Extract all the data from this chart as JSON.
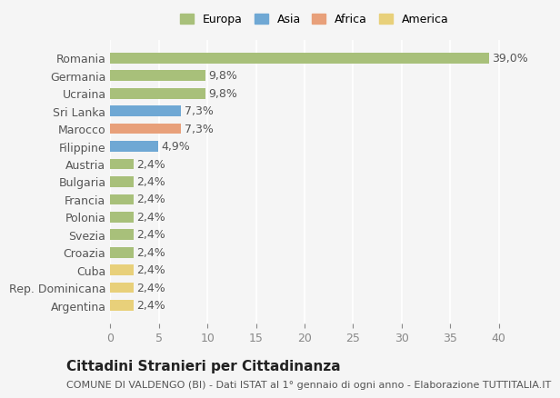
{
  "countries": [
    "Romania",
    "Germania",
    "Ucraina",
    "Sri Lanka",
    "Marocco",
    "Filippine",
    "Austria",
    "Bulgaria",
    "Francia",
    "Polonia",
    "Svezia",
    "Croazia",
    "Cuba",
    "Rep. Dominicana",
    "Argentina"
  ],
  "values": [
    39.0,
    9.8,
    9.8,
    7.3,
    7.3,
    4.9,
    2.4,
    2.4,
    2.4,
    2.4,
    2.4,
    2.4,
    2.4,
    2.4,
    2.4
  ],
  "continents": [
    "Europa",
    "Europa",
    "Europa",
    "Asia",
    "Africa",
    "Asia",
    "Europa",
    "Europa",
    "Europa",
    "Europa",
    "Europa",
    "Europa",
    "America",
    "America",
    "America"
  ],
  "continent_colors": {
    "Europa": "#a8c07a",
    "Asia": "#6fa8d4",
    "Africa": "#e8a07a",
    "America": "#e8d07a"
  },
  "legend_order": [
    "Europa",
    "Asia",
    "Africa",
    "America"
  ],
  "title": "Cittadini Stranieri per Cittadinanza",
  "subtitle": "COMUNE DI VALDENGO (BI) - Dati ISTAT al 1° gennaio di ogni anno - Elaborazione TUTTITALIA.IT",
  "xlabel": "",
  "xlim": [
    0,
    42
  ],
  "xticks": [
    0,
    5,
    10,
    15,
    20,
    25,
    30,
    35,
    40
  ],
  "bg_color": "#f5f5f5",
  "grid_color": "#ffffff",
  "bar_height": 0.6,
  "label_fontsize": 9,
  "value_label_fontsize": 9,
  "title_fontsize": 11,
  "subtitle_fontsize": 8
}
